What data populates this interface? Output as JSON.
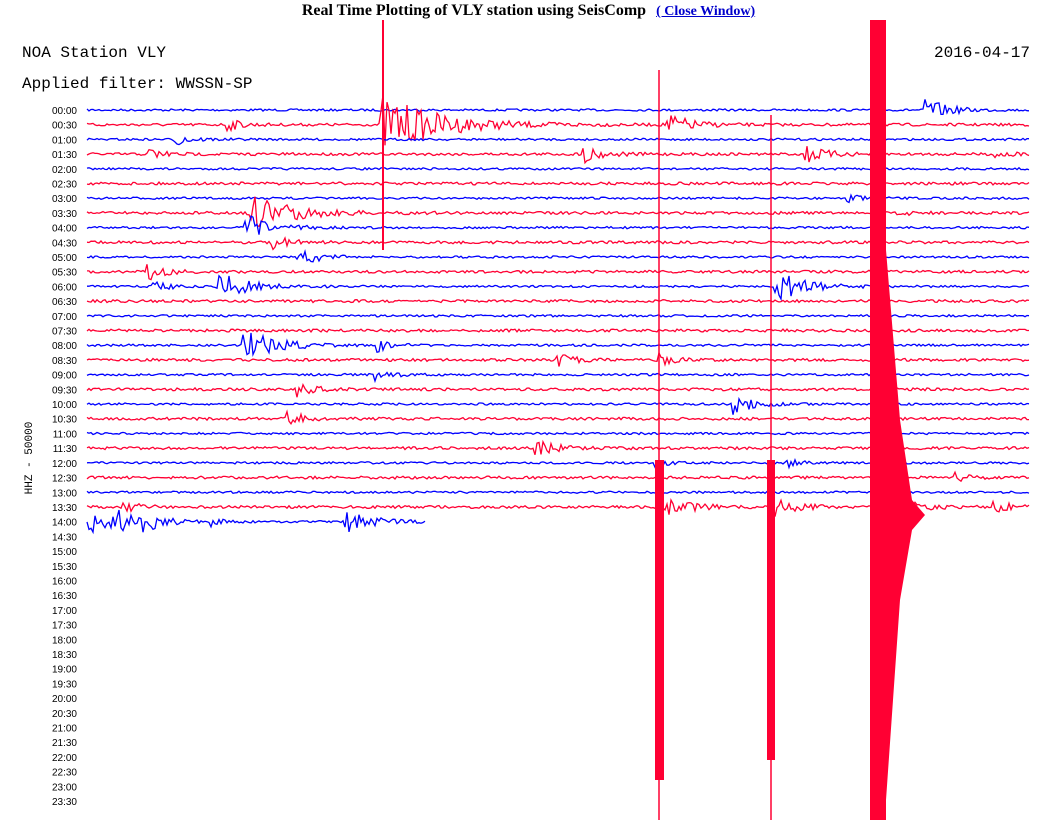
{
  "header": {
    "title": "Real Time Plotting of VLY station using SeisComp",
    "link": "( Close Window)"
  },
  "plot": {
    "station": "NOA Station VLY",
    "date": "2016-04-17",
    "filter": "Applied filter: WWSSN-SP",
    "channel": "HHZ - 50000",
    "times": [
      "00:00",
      "00:30",
      "01:00",
      "01:30",
      "02:00",
      "02:30",
      "03:00",
      "03:30",
      "04:00",
      "04:30",
      "05:00",
      "05:30",
      "06:00",
      "06:30",
      "07:00",
      "07:30",
      "08:00",
      "08:30",
      "09:00",
      "09:30",
      "10:00",
      "10:30",
      "11:00",
      "11:30",
      "12:00",
      "12:30",
      "13:00",
      "13:30",
      "14:00",
      "14:30",
      "15:00",
      "15:30",
      "16:00",
      "16:30",
      "17:00",
      "17:30",
      "18:00",
      "18:30",
      "19:00",
      "19:30",
      "20:00",
      "20:30",
      "21:00",
      "21:30",
      "22:00",
      "22:30",
      "23:00",
      "23:30"
    ]
  }
}
